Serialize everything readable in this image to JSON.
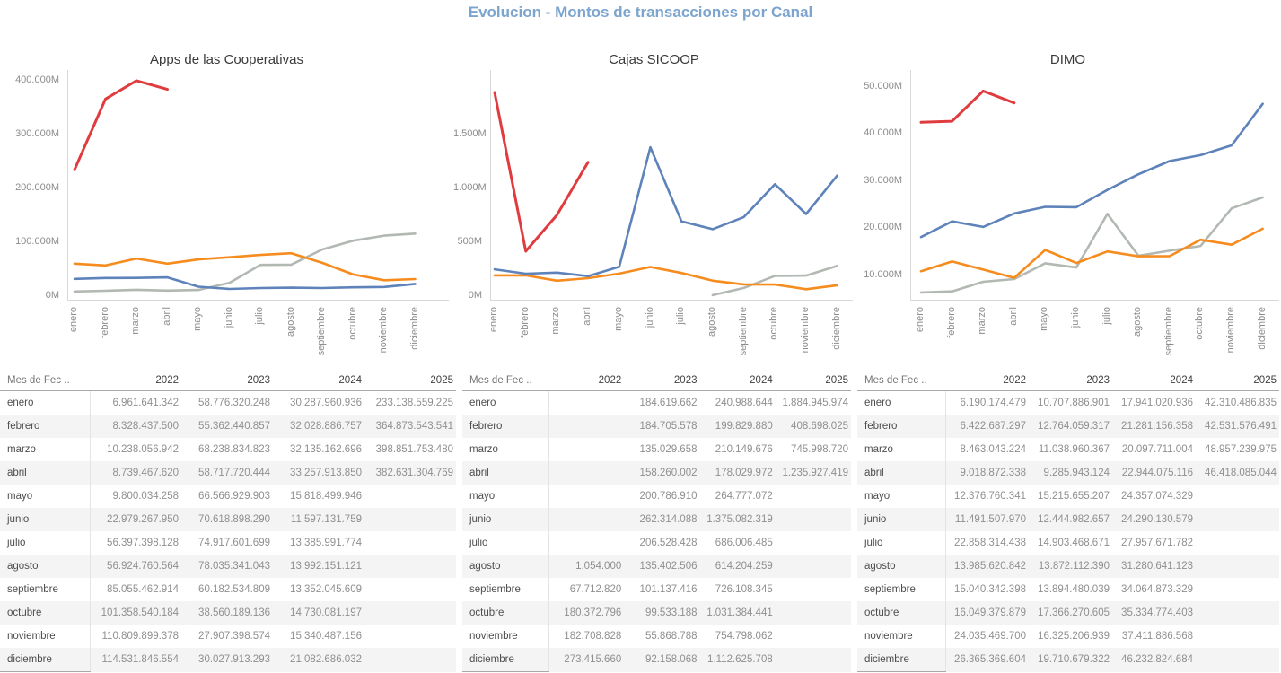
{
  "title": "Evolucion - Montos de transacciones por Canal",
  "title_color": "#7ba5ce",
  "months": [
    "enero",
    "febrero",
    "marzo",
    "abril",
    "mayo",
    "junio",
    "julio",
    "agosto",
    "septiembre",
    "octubre",
    "noviembre",
    "diciembre"
  ],
  "series_colors": {
    "2022": "#b2b8b2",
    "2023": "#f68b1e",
    "2024": "#5e82ba",
    "2025": "#e03b3e"
  },
  "chart_data": [
    {
      "type": "line",
      "title": "Apps de las Cooperativas",
      "unit": "millions",
      "grid": false,
      "legend": "none",
      "categories": [
        "enero",
        "febrero",
        "marzo",
        "abril",
        "mayo",
        "junio",
        "julio",
        "agosto",
        "septiembre",
        "octubre",
        "noviembre",
        "diciembre"
      ],
      "y_domain": [
        0,
        402000
      ],
      "y_ticks": [
        {
          "value": 0,
          "label": "0M"
        },
        {
          "value": 100000,
          "label": "100.000M"
        },
        {
          "value": 200000,
          "label": "200.000M"
        },
        {
          "value": 300000,
          "label": "300.000M"
        },
        {
          "value": 400000,
          "label": "400.000M"
        }
      ],
      "series": [
        {
          "name": "2022",
          "color": "#b2b8b2",
          "values": [
            6962,
            8328,
            10238,
            8739,
            9800,
            22979,
            56397,
            56925,
            85055,
            101359,
            110810,
            114532
          ]
        },
        {
          "name": "2023",
          "color": "#f68b1e",
          "values": [
            58776,
            55362,
            68239,
            58718,
            66567,
            70619,
            74918,
            78035,
            60183,
            38560,
            27907,
            30028
          ]
        },
        {
          "name": "2024",
          "color": "#5e82ba",
          "values": [
            30288,
            32029,
            32135,
            33258,
            15818,
            11597,
            13386,
            13992,
            13352,
            14730,
            15340,
            21083
          ]
        },
        {
          "name": "2025",
          "color": "#e03b3e",
          "values": [
            233139,
            364874,
            398852,
            382631,
            null,
            null,
            null,
            null,
            null,
            null,
            null,
            null
          ]
        }
      ]
    },
    {
      "type": "line",
      "title": "Cajas SICOOP",
      "unit": "millions",
      "grid": false,
      "legend": "none",
      "categories": [
        "enero",
        "febrero",
        "marzo",
        "abril",
        "mayo",
        "junio",
        "julio",
        "agosto",
        "septiembre",
        "octubre",
        "noviembre",
        "diciembre"
      ],
      "y_domain": [
        0,
        2010
      ],
      "y_ticks": [
        {
          "value": 0,
          "label": "0M"
        },
        {
          "value": 500,
          "label": "500M"
        },
        {
          "value": 1000,
          "label": "1.000M"
        },
        {
          "value": 1500,
          "label": "1.500M"
        }
      ],
      "series": [
        {
          "name": "2022",
          "color": "#b2b8b2",
          "values": [
            null,
            null,
            null,
            null,
            null,
            null,
            null,
            1.05,
            67.71,
            180.37,
            182.71,
            273.42
          ]
        },
        {
          "name": "2023",
          "color": "#f68b1e",
          "values": [
            184.62,
            184.71,
            135.03,
            158.26,
            200.79,
            262.31,
            206.53,
            135.4,
            101.14,
            99.53,
            55.87,
            92.16
          ]
        },
        {
          "name": "2024",
          "color": "#5e82ba",
          "values": [
            240.99,
            199.83,
            210.15,
            178.03,
            264.78,
            1375.08,
            686.01,
            614.2,
            726.11,
            1031.38,
            754.8,
            1112.63
          ]
        },
        {
          "name": "2025",
          "color": "#e03b3e",
          "values": [
            1884.95,
            408.7,
            745.99,
            1235.93,
            null,
            null,
            null,
            null,
            null,
            null,
            null,
            null
          ]
        }
      ]
    },
    {
      "type": "line",
      "title": "DIMO",
      "unit": "millions",
      "grid": false,
      "legend": "none",
      "categories": [
        "enero",
        "febrero",
        "marzo",
        "abril",
        "mayo",
        "junio",
        "julio",
        "agosto",
        "septiembre",
        "octubre",
        "noviembre",
        "diciembre"
      ],
      "y_domain": [
        5600,
        51500
      ],
      "y_ticks": [
        {
          "value": 10000,
          "label": "10.000M"
        },
        {
          "value": 20000,
          "label": "20.000M"
        },
        {
          "value": 30000,
          "label": "30.000M"
        },
        {
          "value": 40000,
          "label": "40.000M"
        },
        {
          "value": 50000,
          "label": "50.000M"
        }
      ],
      "series": [
        {
          "name": "2022",
          "color": "#b2b8b2",
          "values": [
            6190,
            6423,
            8463,
            9019,
            12377,
            11492,
            22858,
            13986,
            15040,
            16049,
            24035,
            26365
          ]
        },
        {
          "name": "2023",
          "color": "#f68b1e",
          "values": [
            10708,
            12764,
            11039,
            9286,
            15216,
            12445,
            14903,
            13872,
            13894,
            17366,
            16325,
            19711
          ]
        },
        {
          "name": "2024",
          "color": "#5e82ba",
          "values": [
            17941,
            21281,
            20098,
            22944,
            24357,
            24290,
            27958,
            31281,
            34065,
            35335,
            37412,
            46233
          ]
        },
        {
          "name": "2025",
          "color": "#e03b3e",
          "values": [
            42310,
            42532,
            48957,
            46418,
            null,
            null,
            null,
            null,
            null,
            null,
            null,
            null
          ]
        }
      ]
    }
  ],
  "tables": [
    {
      "header": [
        "Mes de Fec ..",
        "2022",
        "2023",
        "2024",
        "2025"
      ],
      "rows": [
        [
          "enero",
          "6.961.641.342",
          "58.776.320.248",
          "30.287.960.936",
          "233.138.559.225"
        ],
        [
          "febrero",
          "8.328.437.500",
          "55.362.440.857",
          "32.028.886.757",
          "364.873.543.541"
        ],
        [
          "marzo",
          "10.238.056.942",
          "68.238.834.823",
          "32.135.162.696",
          "398.851.753.480"
        ],
        [
          "abril",
          "8.739.467.620",
          "58.717.720.444",
          "33.257.913.850",
          "382.631.304.769"
        ],
        [
          "mayo",
          "9.800.034.258",
          "66.566.929.903",
          "15.818.499.946",
          ""
        ],
        [
          "junio",
          "22.979.267.950",
          "70.618.898.290",
          "11.597.131.759",
          ""
        ],
        [
          "julio",
          "56.397.398.128",
          "74.917.601.699",
          "13.385.991.774",
          ""
        ],
        [
          "agosto",
          "56.924.760.564",
          "78.035.341.043",
          "13.992.151.121",
          ""
        ],
        [
          "septiembre",
          "85.055.462.914",
          "60.182.534.809",
          "13.352.045.609",
          ""
        ],
        [
          "octubre",
          "101.358.540.184",
          "38.560.189.136",
          "14.730.081.197",
          ""
        ],
        [
          "noviembre",
          "110.809.899.378",
          "27.907.398.574",
          "15.340.487.156",
          ""
        ],
        [
          "diciembre",
          "114.531.846.554",
          "30.027.913.293",
          "21.082.686.032",
          ""
        ]
      ]
    },
    {
      "header": [
        "Mes de Fec ..",
        "2022",
        "2023",
        "2024",
        "2025"
      ],
      "rows": [
        [
          "enero",
          "",
          "184.619.662",
          "240.988.644",
          "1.884.945.974"
        ],
        [
          "febrero",
          "",
          "184.705.578",
          "199.829.880",
          "408.698.025"
        ],
        [
          "marzo",
          "",
          "135.029.658",
          "210.149.676",
          "745.998.720"
        ],
        [
          "abril",
          "",
          "158.260.002",
          "178.029.972",
          "1.235.927.419"
        ],
        [
          "mayo",
          "",
          "200.786.910",
          "264.777.072",
          ""
        ],
        [
          "junio",
          "",
          "262.314.088",
          "1.375.082.319",
          ""
        ],
        [
          "julio",
          "",
          "206.528.428",
          "686.006.485",
          ""
        ],
        [
          "agosto",
          "1.054.000",
          "135.402.506",
          "614.204.259",
          ""
        ],
        [
          "septiembre",
          "67.712.820",
          "101.137.416",
          "726.108.345",
          ""
        ],
        [
          "octubre",
          "180.372.796",
          "99.533.188",
          "1.031.384.441",
          ""
        ],
        [
          "noviembre",
          "182.708.828",
          "55.868.788",
          "754.798.062",
          ""
        ],
        [
          "diciembre",
          "273.415.660",
          "92.158.068",
          "1.112.625.708",
          ""
        ]
      ]
    },
    {
      "header": [
        "Mes de Fec ..",
        "2022",
        "2023",
        "2024",
        "2025"
      ],
      "rows": [
        [
          "enero",
          "6.190.174.479",
          "10.707.886.901",
          "17.941.020.936",
          "42.310.486.835"
        ],
        [
          "febrero",
          "6.422.687.297",
          "12.764.059.317",
          "21.281.156.358",
          "42.531.576.491"
        ],
        [
          "marzo",
          "8.463.043.224",
          "11.038.960.367",
          "20.097.711.004",
          "48.957.239.975"
        ],
        [
          "abril",
          "9.018.872.338",
          "9.285.943.124",
          "22.944.075.116",
          "46.418.085.044"
        ],
        [
          "mayo",
          "12.376.760.341",
          "15.215.655.207",
          "24.357.074.329",
          ""
        ],
        [
          "junio",
          "11.491.507.970",
          "12.444.982.657",
          "24.290.130.579",
          ""
        ],
        [
          "julio",
          "22.858.314.438",
          "14.903.468.671",
          "27.957.671.782",
          ""
        ],
        [
          "agosto",
          "13.985.620.842",
          "13.872.112.390",
          "31.280.641.123",
          ""
        ],
        [
          "septiembre",
          "15.040.342.398",
          "13.894.480.039",
          "34.064.873.329",
          ""
        ],
        [
          "octubre",
          "16.049.379.879",
          "17.366.270.605",
          "35.334.774.403",
          ""
        ],
        [
          "noviembre",
          "24.035.469.700",
          "16.325.206.939",
          "37.411.886.568",
          ""
        ],
        [
          "diciembre",
          "26.365.369.604",
          "19.710.679.322",
          "46.232.824.684",
          ""
        ]
      ]
    }
  ]
}
